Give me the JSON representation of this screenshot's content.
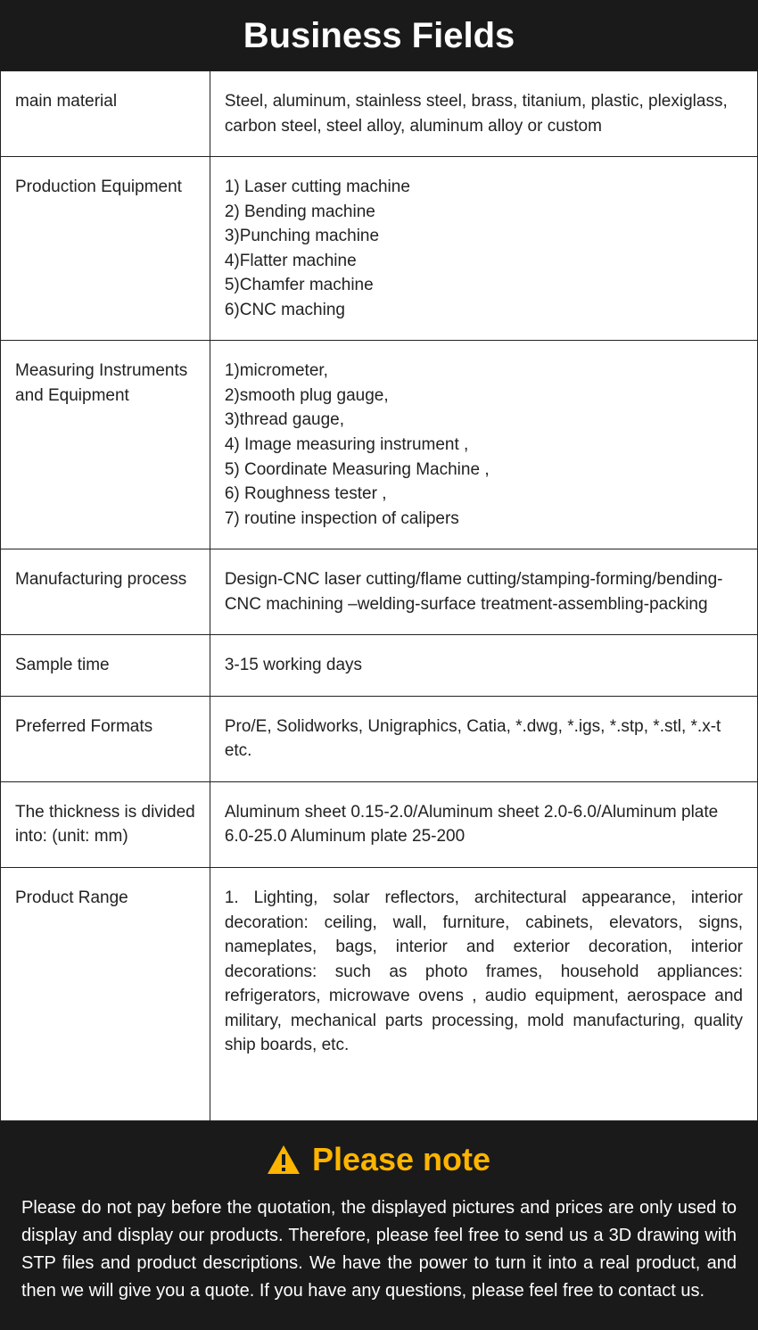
{
  "header_title": "Business Fields",
  "accent_color": "#ffb400",
  "header_bg": "#1a1a1a",
  "text_color": "#222222",
  "border_color": "#222222",
  "rows": [
    {
      "label": "main material",
      "value_text": "Steel, aluminum, stainless steel, brass, titanium, plastic, plexiglass, carbon steel, steel alloy, aluminum alloy or custom",
      "value_list": null,
      "justify": false
    },
    {
      "label": "Production Equipment",
      "value_text": null,
      "value_list": [
        "1) Laser cutting machine",
        "2) Bending machine",
        "3)Punching machine",
        "4)Flatter machine",
        "5)Chamfer machine",
        "6)CNC maching"
      ],
      "justify": false
    },
    {
      "label": "Measuring Instruments and Equipment",
      "value_text": null,
      "value_list": [
        "1)micrometer,",
        "2)smooth plug gauge,",
        "3)thread gauge,",
        "4) Image measuring instrument ,",
        "5) Coordinate Measuring Machine ,",
        "6) Roughness tester ,",
        "7) routine inspection of calipers"
      ],
      "justify": false
    },
    {
      "label": "Manufacturing process",
      "value_text": "Design-CNC laser cutting/flame cutting/stamping-forming/bending-CNC machining –welding-surface treatment-assembling-packing",
      "value_list": null,
      "justify": false
    },
    {
      "label": "Sample time",
      "value_text": "3-15  working days",
      "value_list": null,
      "justify": false
    },
    {
      "label": "Preferred Formats",
      "value_text": "Pro/E, Solidworks, Unigraphics, Catia, *.dwg, *.igs, *.stp, *.stl, *.x-t etc.",
      "value_list": null,
      "justify": false
    },
    {
      "label": "The thickness is divided into: (unit: mm)",
      "value_text": "Aluminum sheet 0.15-2.0/Aluminum sheet 2.0-6.0/Aluminum plate 6.0-25.0 Aluminum plate 25-200",
      "value_list": null,
      "justify": false
    },
    {
      "label": "Product Range",
      "value_text": "1. Lighting, solar reflectors, architectural appearance, interior decoration: ceiling, wall, furniture, cabinets, elevators, signs, nameplates, bags, interior and exterior decoration, interior decorations: such as photo frames, household appliances: refrigerators, microwave ovens , audio equipment, aerospace and military, mechanical parts processing, mold manufacturing, quality ship boards, etc.",
      "value_list": null,
      "justify": true,
      "extra_padding_bottom": 70
    }
  ],
  "note": {
    "title": "Please note",
    "body": "Please do not pay before the quotation, the displayed pictures and prices are only used to display and display our products. Therefore, please feel free to send us a 3D drawing with STP files and product descriptions. We have the power to turn it into a real product, and then we will give you a quote. If you have any questions, please feel free to contact us."
  }
}
